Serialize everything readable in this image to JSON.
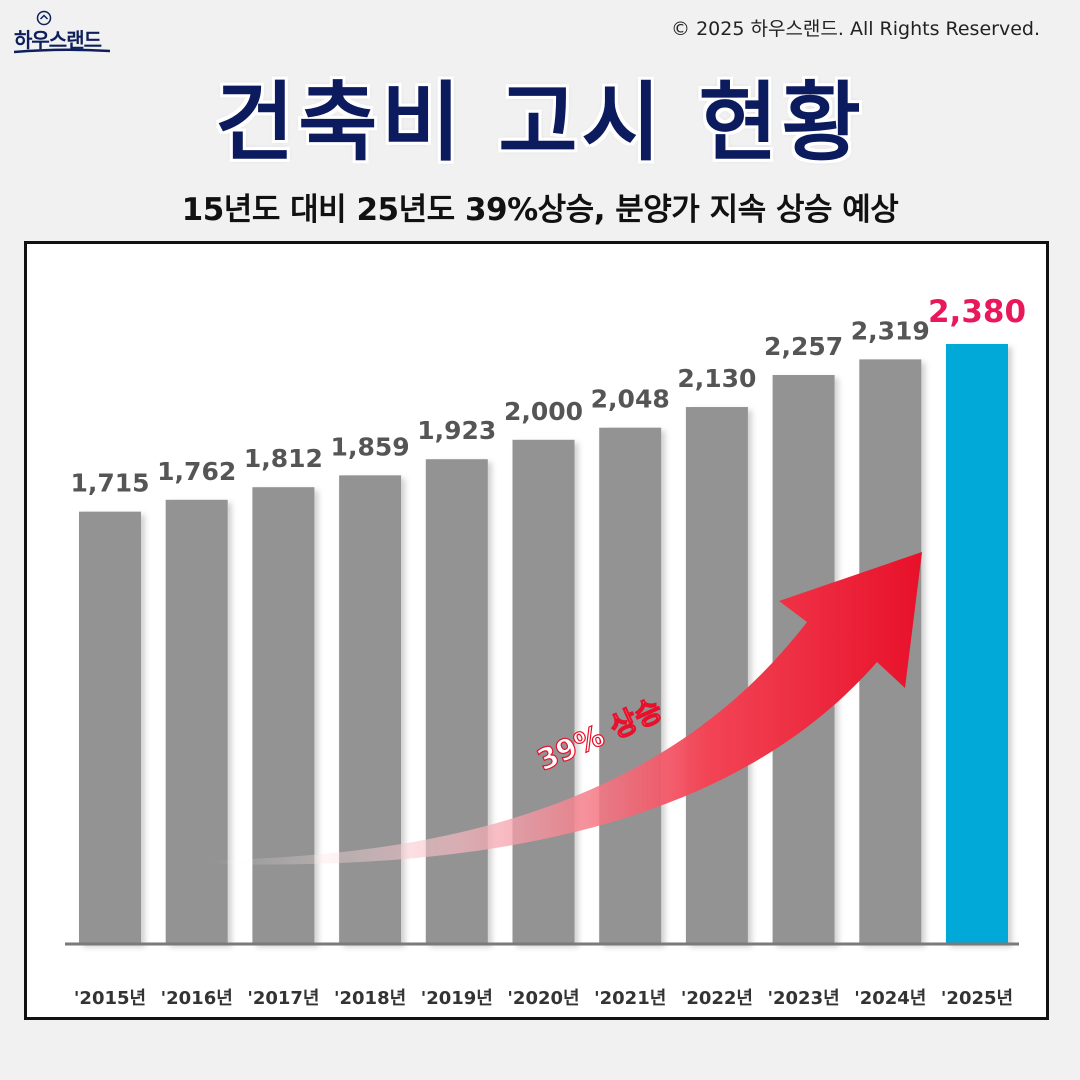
{
  "brand": {
    "logo_text": "하우스랜드"
  },
  "copyright": "© 2025 하우스랜드. All Rights Reserved.",
  "title": "건축비 고시 현황",
  "subtitle": "15년도 대비 25년도 39%상승, 분양가 지속 상승 예상",
  "colors": {
    "title": "#0c1a5e",
    "bar": "#939393",
    "highlight_bar": "#00a9d8",
    "highlight_label": "#e8185b",
    "value_label": "#555555",
    "arrow": "#ed1c2e"
  },
  "chart_data": {
    "type": "bar",
    "categories": [
      "'2015년",
      "'2016년",
      "'2017년",
      "'2018년",
      "'2019년",
      "'2020년",
      "'2021년",
      "'2022년",
      "'2023년",
      "'2024년",
      "'2025년"
    ],
    "values": [
      1715,
      1762,
      1812,
      1859,
      1923,
      2000,
      2048,
      2130,
      2257,
      2319,
      2380
    ],
    "value_labels": [
      "1,715",
      "1,762",
      "1,812",
      "1,859",
      "1,923",
      "2,000",
      "2,048",
      "2,130",
      "2,257",
      "2,319",
      "2,380"
    ],
    "highlight_index": 10,
    "annotation": "39% 상승",
    "title": "",
    "xlabel": "",
    "ylabel": "",
    "grid": false,
    "legend": "none"
  }
}
